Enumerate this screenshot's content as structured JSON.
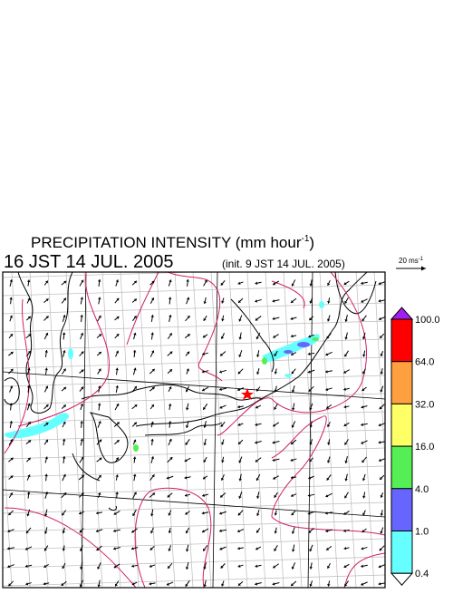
{
  "header": {
    "title": "PRECIPITATION INTENSITY (mm hour",
    "title_exponent": "-1",
    "title_end": ")",
    "valid_time": "16 JST 14 JUL. 2005",
    "init_time": "(init. 9 JST 14 JUL. 2005)"
  },
  "wind_scale": {
    "label": "20 ms",
    "exponent": "-1"
  },
  "colorbar": {
    "labels": [
      "100.0",
      "64.0",
      "32.0",
      "16.0",
      "4.0",
      "1.0",
      "0.4"
    ],
    "colors": [
      "#a020f0",
      "#ff0000",
      "#ffa040",
      "#ffff66",
      "#55ee55",
      "#6666ff",
      "#66ffff",
      "#ffffff"
    ]
  }
}
